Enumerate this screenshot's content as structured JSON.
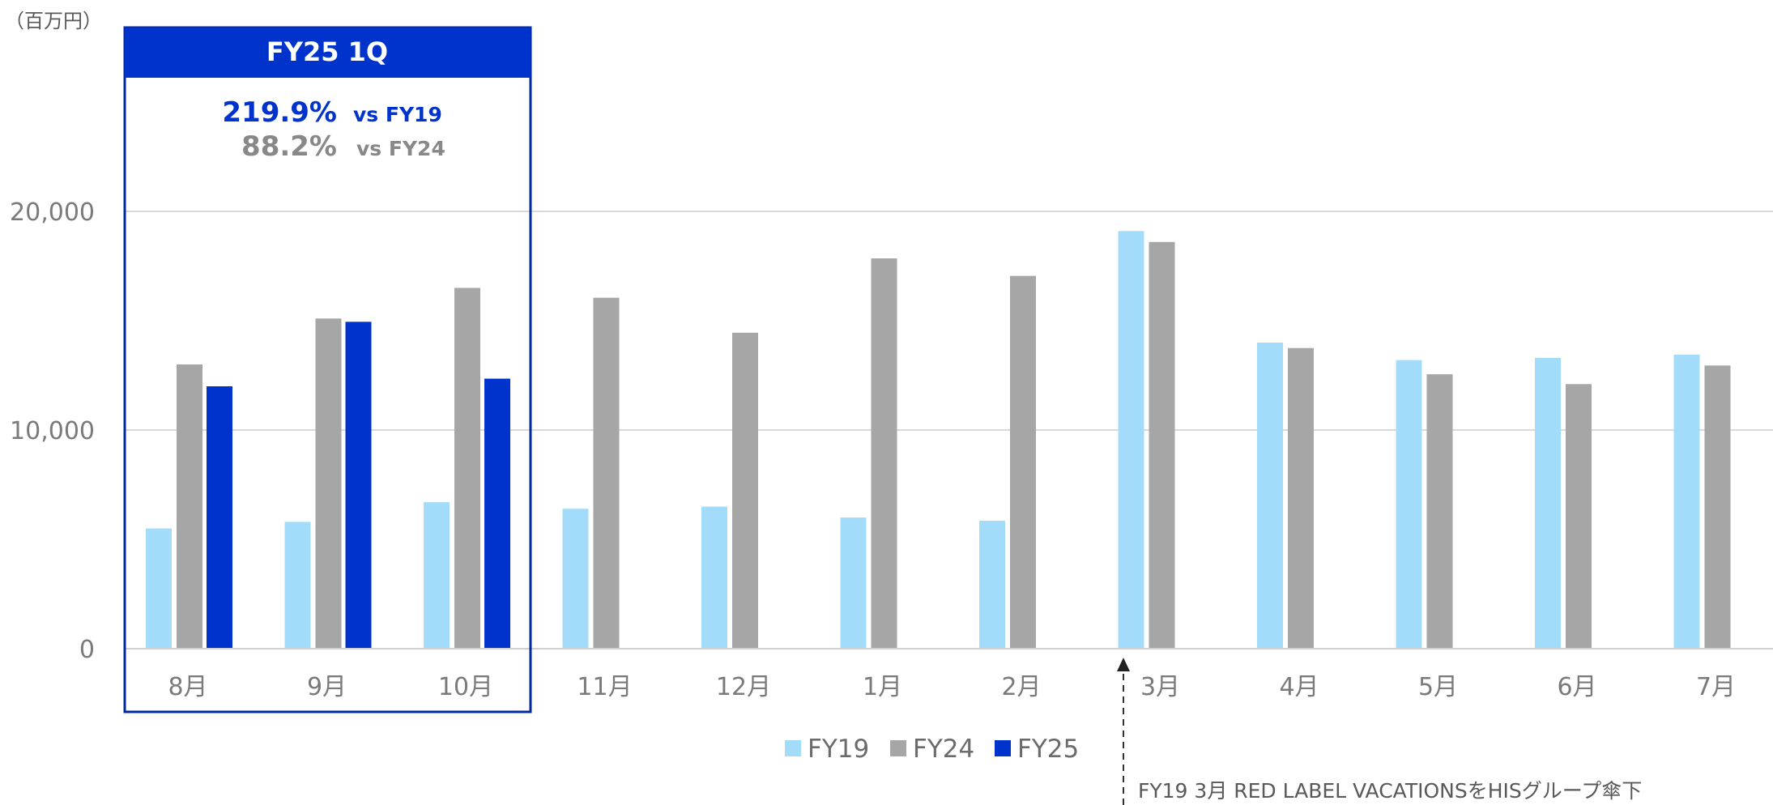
{
  "unit_label": "（百万円）",
  "highlight": {
    "title": "FY25 1Q",
    "line1_value": "219.9%",
    "line1_label": "vs FY19",
    "line2_value": "88.2%",
    "line2_label": "vs FY24"
  },
  "annotation": "FY19 3月 RED LABEL VACATIONSをHISグループ傘下",
  "colors": {
    "FY19": "#a3dcfa",
    "FY24": "#a6a6a6",
    "FY25": "#0033cc",
    "highlight_title": "#0033cc",
    "highlight_sub": "#888888"
  },
  "chart_data": {
    "type": "bar",
    "categories": [
      "8月",
      "9月",
      "10月",
      "11月",
      "12月",
      "1月",
      "2月",
      "3月",
      "4月",
      "5月",
      "6月",
      "7月"
    ],
    "series": [
      {
        "name": "FY19",
        "values": [
          5500,
          5800,
          6700,
          6400,
          6500,
          6000,
          5850,
          19100,
          14000,
          13200,
          13300,
          13450
        ]
      },
      {
        "name": "FY24",
        "values": [
          13000,
          15100,
          16500,
          16050,
          14450,
          17850,
          17050,
          18600,
          13750,
          12550,
          12100,
          12950
        ]
      },
      {
        "name": "FY25",
        "values": [
          12000,
          14950,
          12350,
          null,
          null,
          null,
          null,
          null,
          null,
          null,
          null,
          null
        ]
      }
    ],
    "yticks": [
      0,
      10000,
      20000
    ],
    "ytick_labels": [
      "0",
      "10,000",
      "20,000"
    ],
    "ylim": [
      0,
      28000
    ],
    "grid": true,
    "legend_position": "bottom"
  }
}
